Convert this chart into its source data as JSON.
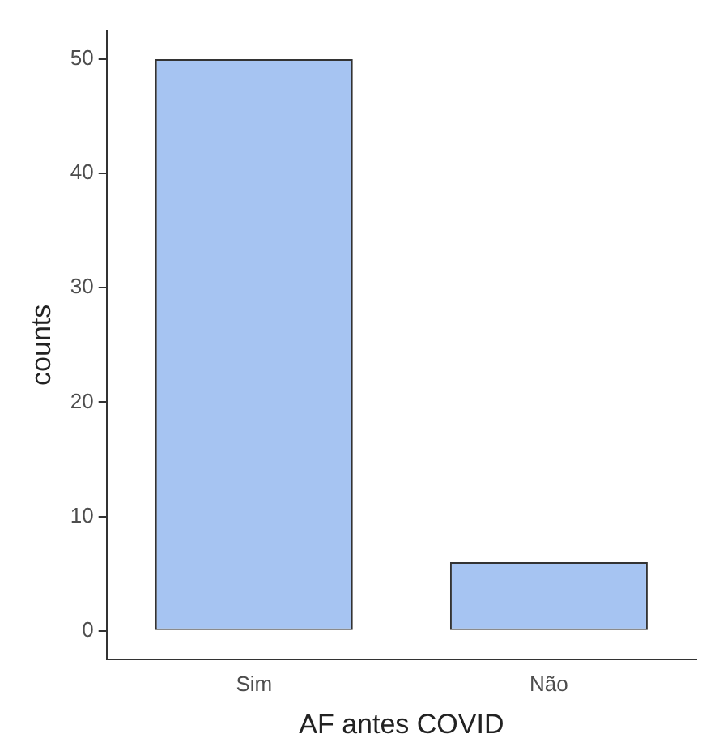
{
  "chart_data": {
    "type": "bar",
    "xlabel": "AF antes COVID",
    "ylabel": "counts",
    "categories": [
      "Sim",
      "Não"
    ],
    "values": [
      50,
      6
    ],
    "color": "#a6c4f2",
    "ylim": [
      -2.5,
      52.5
    ],
    "yticks": [
      0,
      10,
      20,
      30,
      40,
      50
    ],
    "grid": false,
    "legend": false
  }
}
